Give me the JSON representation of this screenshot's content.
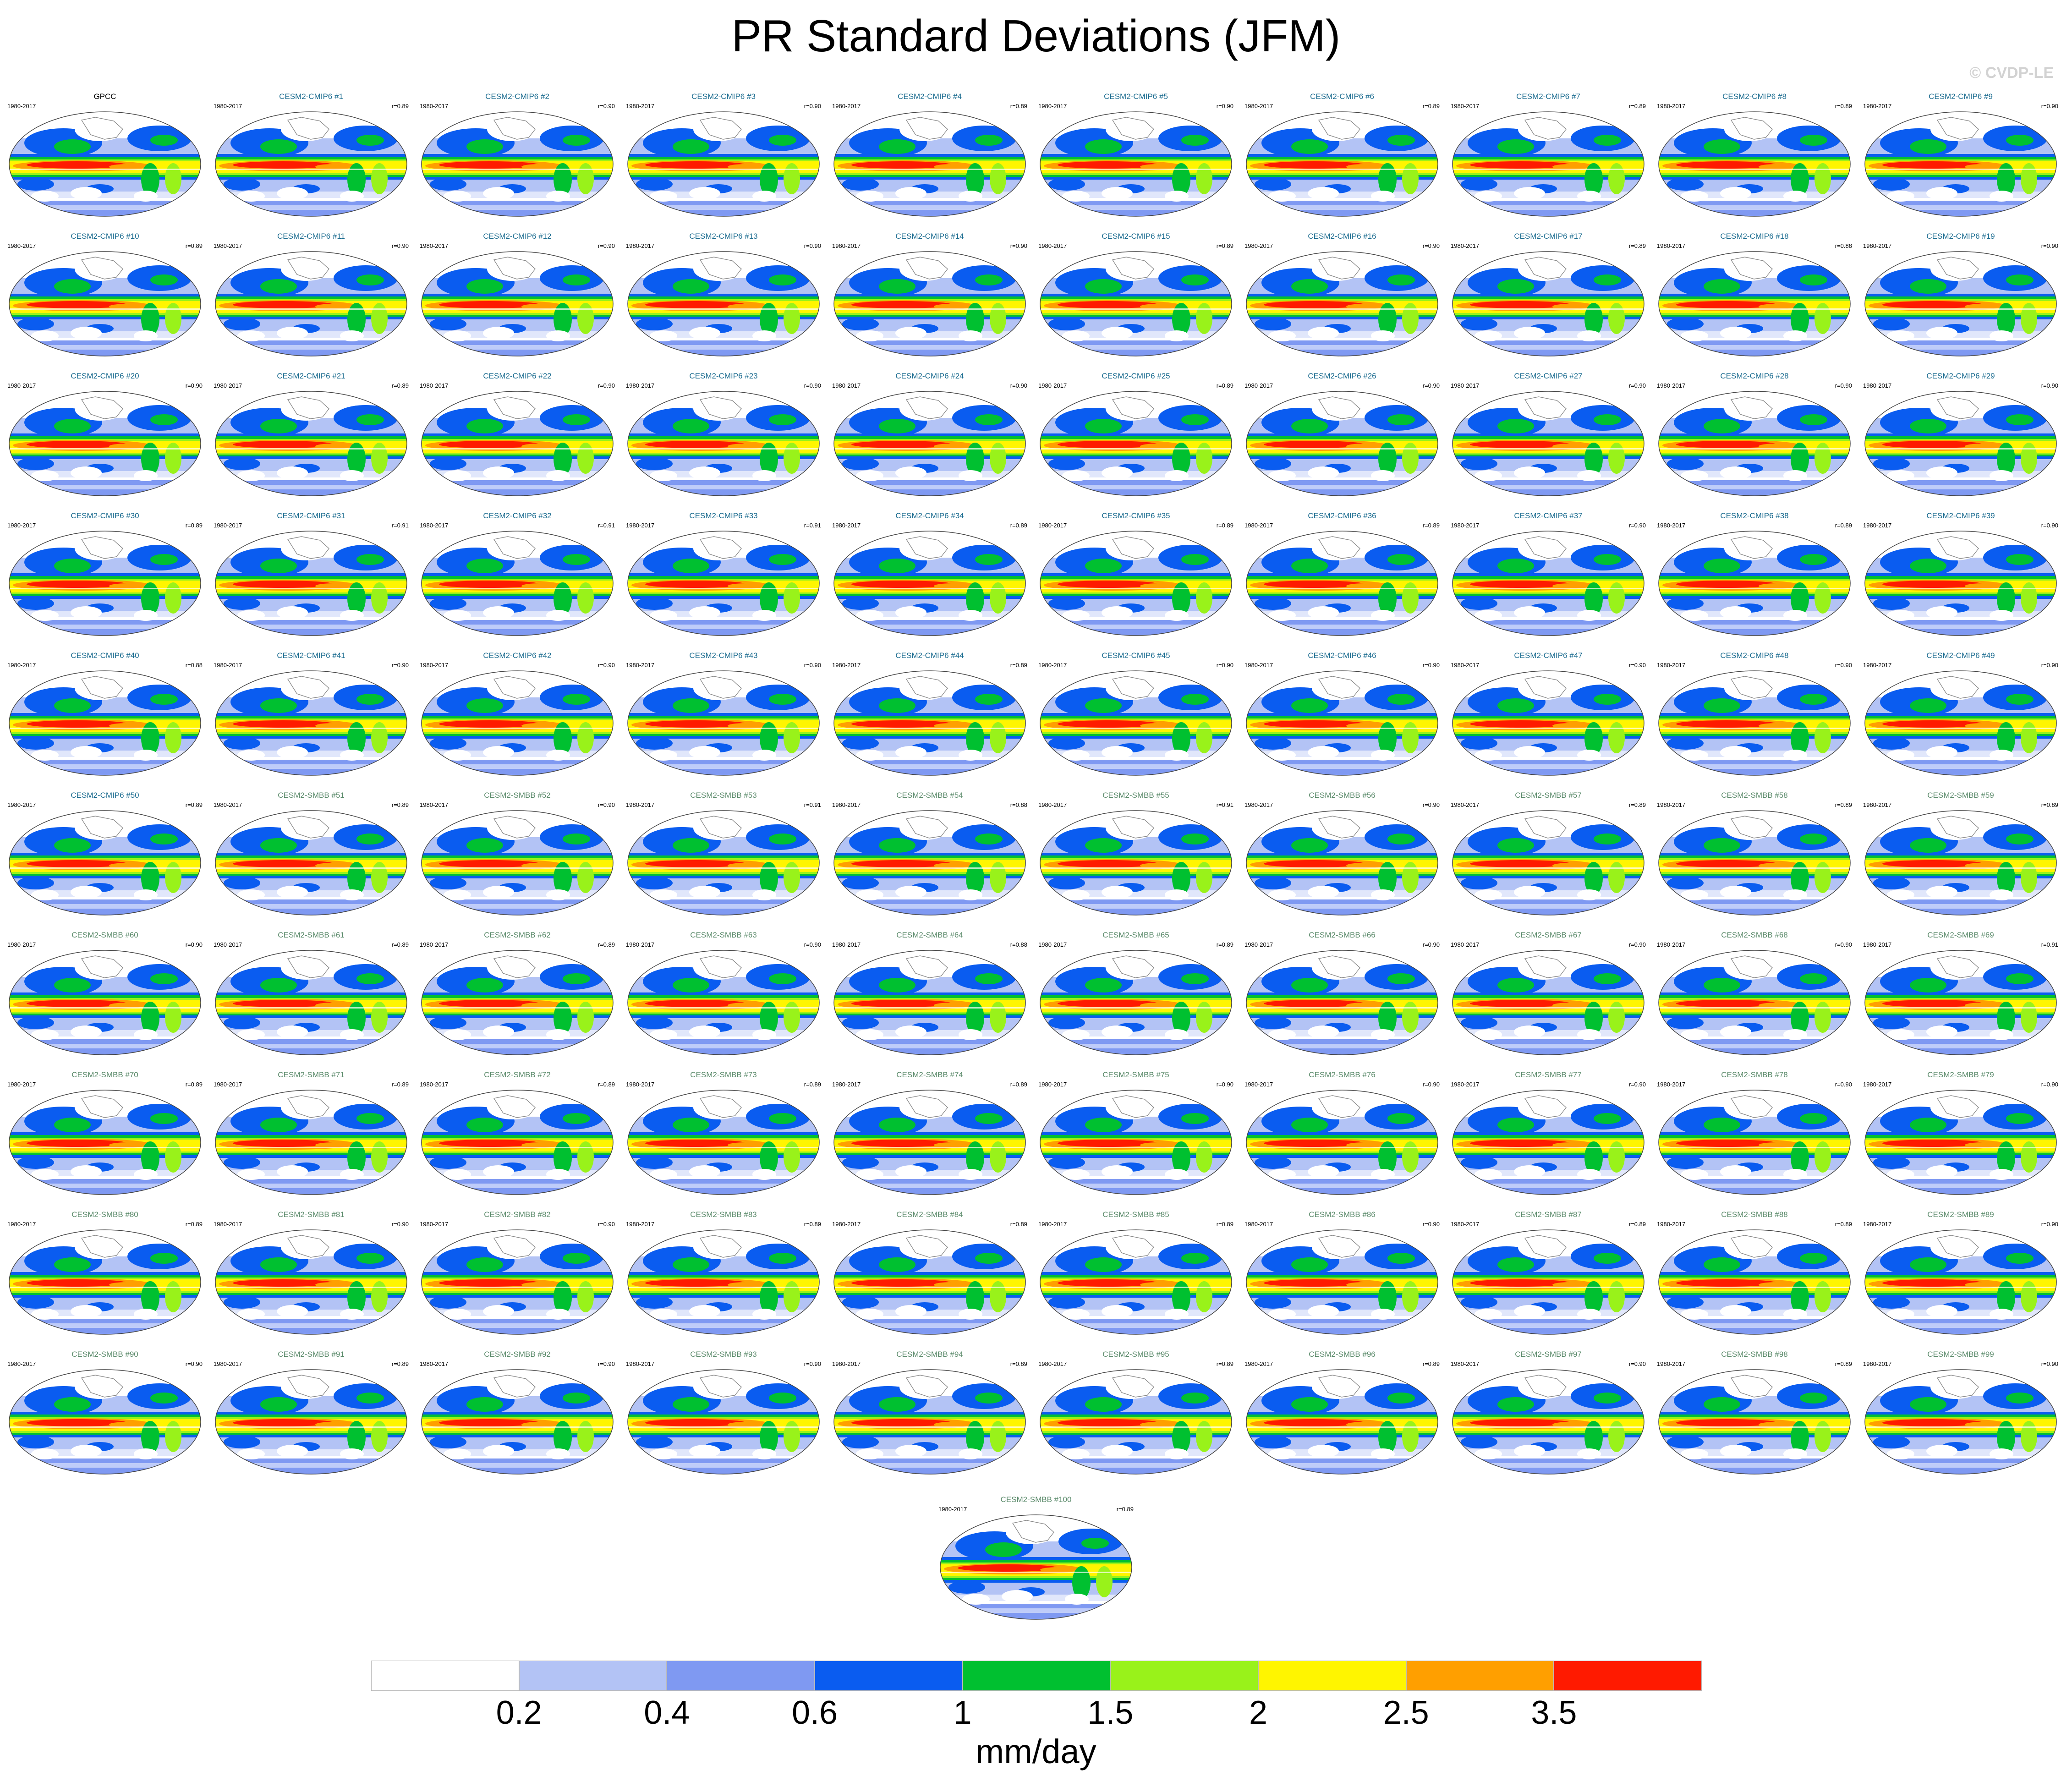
{
  "chart_data": {
    "type": "heatmap",
    "title": "PR Standard Deviations (JFM)",
    "watermark": "© CVDP-LE",
    "units": "mm/day",
    "period": "1980-2017",
    "colorbar": {
      "ticks": [
        "0.2",
        "0.4",
        "0.6",
        "1",
        "1.5",
        "2",
        "2.5",
        "3.5"
      ],
      "colors": [
        "#ffffff",
        "#b3c3f5",
        "#7f99f2",
        "#0a5cf0",
        "#00c030",
        "#99f21a",
        "#fff500",
        "#ff9f00",
        "#ff1a00"
      ]
    },
    "title_colors": {
      "obs": "#000000",
      "CESM2-CMIP6": "#1a6b8f",
      "CESM2-SMBB": "#5a8a6a"
    },
    "panels": [
      {
        "name": "GPCC",
        "r": ""
      },
      {
        "name": "CESM2-CMIP6 #1",
        "r": "r=0.89"
      },
      {
        "name": "CESM2-CMIP6 #2",
        "r": "r=0.90"
      },
      {
        "name": "CESM2-CMIP6 #3",
        "r": "r=0.90"
      },
      {
        "name": "CESM2-CMIP6 #4",
        "r": "r=0.89"
      },
      {
        "name": "CESM2-CMIP6 #5",
        "r": "r=0.90"
      },
      {
        "name": "CESM2-CMIP6 #6",
        "r": "r=0.89"
      },
      {
        "name": "CESM2-CMIP6 #7",
        "r": "r=0.89"
      },
      {
        "name": "CESM2-CMIP6 #8",
        "r": "r=0.89"
      },
      {
        "name": "CESM2-CMIP6 #9",
        "r": "r=0.90"
      },
      {
        "name": "CESM2-CMIP6 #10",
        "r": "r=0.89"
      },
      {
        "name": "CESM2-CMIP6 #11",
        "r": "r=0.90"
      },
      {
        "name": "CESM2-CMIP6 #12",
        "r": "r=0.90"
      },
      {
        "name": "CESM2-CMIP6 #13",
        "r": "r=0.90"
      },
      {
        "name": "CESM2-CMIP6 #14",
        "r": "r=0.90"
      },
      {
        "name": "CESM2-CMIP6 #15",
        "r": "r=0.89"
      },
      {
        "name": "CESM2-CMIP6 #16",
        "r": "r=0.90"
      },
      {
        "name": "CESM2-CMIP6 #17",
        "r": "r=0.89"
      },
      {
        "name": "CESM2-CMIP6 #18",
        "r": "r=0.88"
      },
      {
        "name": "CESM2-CMIP6 #19",
        "r": "r=0.90"
      },
      {
        "name": "CESM2-CMIP6 #20",
        "r": "r=0.90"
      },
      {
        "name": "CESM2-CMIP6 #21",
        "r": "r=0.89"
      },
      {
        "name": "CESM2-CMIP6 #22",
        "r": "r=0.90"
      },
      {
        "name": "CESM2-CMIP6 #23",
        "r": "r=0.90"
      },
      {
        "name": "CESM2-CMIP6 #24",
        "r": "r=0.90"
      },
      {
        "name": "CESM2-CMIP6 #25",
        "r": "r=0.89"
      },
      {
        "name": "CESM2-CMIP6 #26",
        "r": "r=0.90"
      },
      {
        "name": "CESM2-CMIP6 #27",
        "r": "r=0.90"
      },
      {
        "name": "CESM2-CMIP6 #28",
        "r": "r=0.90"
      },
      {
        "name": "CESM2-CMIP6 #29",
        "r": "r=0.90"
      },
      {
        "name": "CESM2-CMIP6 #30",
        "r": "r=0.89"
      },
      {
        "name": "CESM2-CMIP6 #31",
        "r": "r=0.91"
      },
      {
        "name": "CESM2-CMIP6 #32",
        "r": "r=0.91"
      },
      {
        "name": "CESM2-CMIP6 #33",
        "r": "r=0.91"
      },
      {
        "name": "CESM2-CMIP6 #34",
        "r": "r=0.89"
      },
      {
        "name": "CESM2-CMIP6 #35",
        "r": "r=0.89"
      },
      {
        "name": "CESM2-CMIP6 #36",
        "r": "r=0.89"
      },
      {
        "name": "CESM2-CMIP6 #37",
        "r": "r=0.90"
      },
      {
        "name": "CESM2-CMIP6 #38",
        "r": "r=0.89"
      },
      {
        "name": "CESM2-CMIP6 #39",
        "r": "r=0.90"
      },
      {
        "name": "CESM2-CMIP6 #40",
        "r": "r=0.88"
      },
      {
        "name": "CESM2-CMIP6 #41",
        "r": "r=0.90"
      },
      {
        "name": "CESM2-CMIP6 #42",
        "r": "r=0.90"
      },
      {
        "name": "CESM2-CMIP6 #43",
        "r": "r=0.90"
      },
      {
        "name": "CESM2-CMIP6 #44",
        "r": "r=0.89"
      },
      {
        "name": "CESM2-CMIP6 #45",
        "r": "r=0.90"
      },
      {
        "name": "CESM2-CMIP6 #46",
        "r": "r=0.90"
      },
      {
        "name": "CESM2-CMIP6 #47",
        "r": "r=0.90"
      },
      {
        "name": "CESM2-CMIP6 #48",
        "r": "r=0.90"
      },
      {
        "name": "CESM2-CMIP6 #49",
        "r": "r=0.90"
      },
      {
        "name": "CESM2-CMIP6 #50",
        "r": "r=0.89"
      },
      {
        "name": "CESM2-SMBB #51",
        "r": "r=0.89"
      },
      {
        "name": "CESM2-SMBB #52",
        "r": "r=0.90"
      },
      {
        "name": "CESM2-SMBB #53",
        "r": "r=0.91"
      },
      {
        "name": "CESM2-SMBB #54",
        "r": "r=0.88"
      },
      {
        "name": "CESM2-SMBB #55",
        "r": "r=0.91"
      },
      {
        "name": "CESM2-SMBB #56",
        "r": "r=0.90"
      },
      {
        "name": "CESM2-SMBB #57",
        "r": "r=0.89"
      },
      {
        "name": "CESM2-SMBB #58",
        "r": "r=0.89"
      },
      {
        "name": "CESM2-SMBB #59",
        "r": "r=0.89"
      },
      {
        "name": "CESM2-SMBB #60",
        "r": "r=0.90"
      },
      {
        "name": "CESM2-SMBB #61",
        "r": "r=0.89"
      },
      {
        "name": "CESM2-SMBB #62",
        "r": "r=0.89"
      },
      {
        "name": "CESM2-SMBB #63",
        "r": "r=0.90"
      },
      {
        "name": "CESM2-SMBB #64",
        "r": "r=0.88"
      },
      {
        "name": "CESM2-SMBB #65",
        "r": "r=0.89"
      },
      {
        "name": "CESM2-SMBB #66",
        "r": "r=0.90"
      },
      {
        "name": "CESM2-SMBB #67",
        "r": "r=0.90"
      },
      {
        "name": "CESM2-SMBB #68",
        "r": "r=0.90"
      },
      {
        "name": "CESM2-SMBB #69",
        "r": "r=0.91"
      },
      {
        "name": "CESM2-SMBB #70",
        "r": "r=0.89"
      },
      {
        "name": "CESM2-SMBB #71",
        "r": "r=0.89"
      },
      {
        "name": "CESM2-SMBB #72",
        "r": "r=0.89"
      },
      {
        "name": "CESM2-SMBB #73",
        "r": "r=0.89"
      },
      {
        "name": "CESM2-SMBB #74",
        "r": "r=0.89"
      },
      {
        "name": "CESM2-SMBB #75",
        "r": "r=0.90"
      },
      {
        "name": "CESM2-SMBB #76",
        "r": "r=0.90"
      },
      {
        "name": "CESM2-SMBB #77",
        "r": "r=0.90"
      },
      {
        "name": "CESM2-SMBB #78",
        "r": "r=0.90"
      },
      {
        "name": "CESM2-SMBB #79",
        "r": "r=0.90"
      },
      {
        "name": "CESM2-SMBB #80",
        "r": "r=0.89"
      },
      {
        "name": "CESM2-SMBB #81",
        "r": "r=0.90"
      },
      {
        "name": "CESM2-SMBB #82",
        "r": "r=0.90"
      },
      {
        "name": "CESM2-SMBB #83",
        "r": "r=0.89"
      },
      {
        "name": "CESM2-SMBB #84",
        "r": "r=0.89"
      },
      {
        "name": "CESM2-SMBB #85",
        "r": "r=0.89"
      },
      {
        "name": "CESM2-SMBB #86",
        "r": "r=0.90"
      },
      {
        "name": "CESM2-SMBB #87",
        "r": "r=0.89"
      },
      {
        "name": "CESM2-SMBB #88",
        "r": "r=0.89"
      },
      {
        "name": "CESM2-SMBB #89",
        "r": "r=0.90"
      },
      {
        "name": "CESM2-SMBB #90",
        "r": "r=0.90"
      },
      {
        "name": "CESM2-SMBB #91",
        "r": "r=0.89"
      },
      {
        "name": "CESM2-SMBB #92",
        "r": "r=0.90"
      },
      {
        "name": "CESM2-SMBB #93",
        "r": "r=0.90"
      },
      {
        "name": "CESM2-SMBB #94",
        "r": "r=0.89"
      },
      {
        "name": "CESM2-SMBB #95",
        "r": "r=0.89"
      },
      {
        "name": "CESM2-SMBB #96",
        "r": "r=0.89"
      },
      {
        "name": "CESM2-SMBB #97",
        "r": "r=0.90"
      },
      {
        "name": "CESM2-SMBB #98",
        "r": "r=0.89"
      },
      {
        "name": "CESM2-SMBB #99",
        "r": "r=0.90"
      },
      {
        "name": "CESM2-SMBB #100",
        "r": "r=0.89"
      }
    ]
  }
}
